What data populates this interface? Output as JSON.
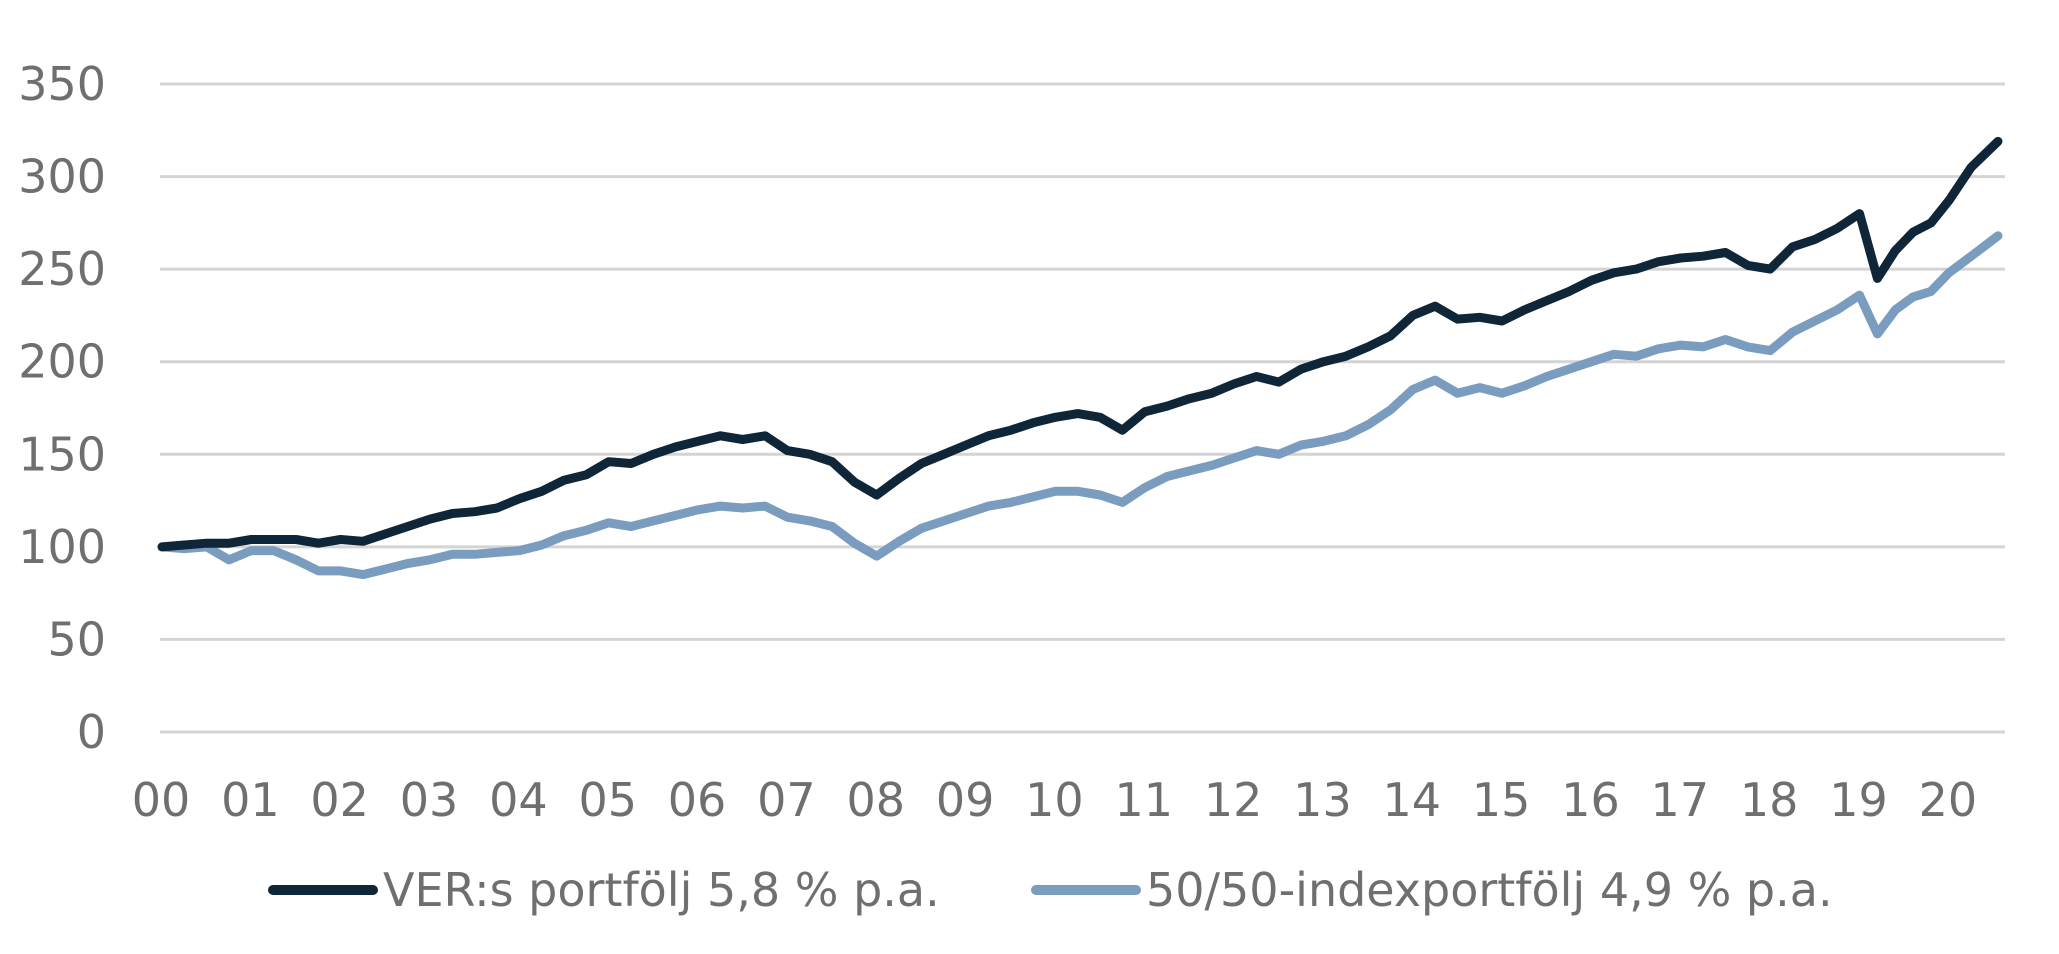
{
  "chart_data": {
    "type": "line",
    "title": "",
    "xlabel": "",
    "ylabel": "",
    "ylim": [
      0,
      350
    ],
    "y_ticks": [
      "0",
      "50",
      "100",
      "150",
      "200",
      "250",
      "300",
      "350"
    ],
    "x_ticks": [
      "00",
      "01",
      "02",
      "03",
      "04",
      "05",
      "06",
      "07",
      "08",
      "09",
      "10",
      "11",
      "12",
      "13",
      "14",
      "15",
      "16",
      "17",
      "18",
      "19",
      "20"
    ],
    "xlim": [
      0,
      20.55
    ],
    "grid": true,
    "legend_position": "bottom",
    "series": [
      {
        "name": "VER:s portfölj 5,8 % p.a.",
        "color": "#0f2538",
        "points": [
          [
            0.0,
            100
          ],
          [
            0.25,
            101
          ],
          [
            0.5,
            102
          ],
          [
            0.75,
            102
          ],
          [
            1.0,
            104
          ],
          [
            1.25,
            104
          ],
          [
            1.5,
            104
          ],
          [
            1.75,
            102
          ],
          [
            2.0,
            104
          ],
          [
            2.25,
            103
          ],
          [
            2.5,
            107
          ],
          [
            2.75,
            111
          ],
          [
            3.0,
            115
          ],
          [
            3.25,
            118
          ],
          [
            3.5,
            119
          ],
          [
            3.75,
            121
          ],
          [
            4.0,
            126
          ],
          [
            4.25,
            130
          ],
          [
            4.5,
            136
          ],
          [
            4.75,
            139
          ],
          [
            5.0,
            146
          ],
          [
            5.25,
            145
          ],
          [
            5.5,
            150
          ],
          [
            5.75,
            154
          ],
          [
            6.0,
            157
          ],
          [
            6.25,
            160
          ],
          [
            6.5,
            158
          ],
          [
            6.75,
            160
          ],
          [
            7.0,
            152
          ],
          [
            7.25,
            150
          ],
          [
            7.5,
            146
          ],
          [
            7.75,
            135
          ],
          [
            8.0,
            128
          ],
          [
            8.25,
            137
          ],
          [
            8.5,
            145
          ],
          [
            8.75,
            150
          ],
          [
            9.0,
            155
          ],
          [
            9.25,
            160
          ],
          [
            9.5,
            163
          ],
          [
            9.75,
            167
          ],
          [
            10.0,
            170
          ],
          [
            10.25,
            172
          ],
          [
            10.5,
            170
          ],
          [
            10.75,
            163
          ],
          [
            11.0,
            173
          ],
          [
            11.25,
            176
          ],
          [
            11.5,
            180
          ],
          [
            11.75,
            183
          ],
          [
            12.0,
            188
          ],
          [
            12.25,
            192
          ],
          [
            12.5,
            189
          ],
          [
            12.75,
            196
          ],
          [
            13.0,
            200
          ],
          [
            13.25,
            203
          ],
          [
            13.5,
            208
          ],
          [
            13.75,
            214
          ],
          [
            14.0,
            225
          ],
          [
            14.25,
            230
          ],
          [
            14.5,
            223
          ],
          [
            14.75,
            224
          ],
          [
            15.0,
            222
          ],
          [
            15.25,
            228
          ],
          [
            15.5,
            233
          ],
          [
            15.75,
            238
          ],
          [
            16.0,
            244
          ],
          [
            16.25,
            248
          ],
          [
            16.5,
            250
          ],
          [
            16.75,
            254
          ],
          [
            17.0,
            256
          ],
          [
            17.25,
            257
          ],
          [
            17.5,
            259
          ],
          [
            17.75,
            252
          ],
          [
            18.0,
            250
          ],
          [
            18.25,
            262
          ],
          [
            18.5,
            266
          ],
          [
            18.75,
            272
          ],
          [
            19.0,
            280
          ],
          [
            19.2,
            245
          ],
          [
            19.4,
            260
          ],
          [
            19.6,
            270
          ],
          [
            19.8,
            275
          ],
          [
            20.0,
            287
          ],
          [
            20.25,
            305
          ],
          [
            20.55,
            319
          ]
        ]
      },
      {
        "name": "50/50-indexportfölj 4,9 % p.a.",
        "color": "#7a9cbf",
        "points": [
          [
            0.0,
            100
          ],
          [
            0.25,
            99
          ],
          [
            0.5,
            100
          ],
          [
            0.75,
            93
          ],
          [
            1.0,
            98
          ],
          [
            1.25,
            98
          ],
          [
            1.5,
            93
          ],
          [
            1.75,
            87
          ],
          [
            2.0,
            87
          ],
          [
            2.25,
            85
          ],
          [
            2.5,
            88
          ],
          [
            2.75,
            91
          ],
          [
            3.0,
            93
          ],
          [
            3.25,
            96
          ],
          [
            3.5,
            96
          ],
          [
            3.75,
            97
          ],
          [
            4.0,
            98
          ],
          [
            4.25,
            101
          ],
          [
            4.5,
            106
          ],
          [
            4.75,
            109
          ],
          [
            5.0,
            113
          ],
          [
            5.25,
            111
          ],
          [
            5.5,
            114
          ],
          [
            5.75,
            117
          ],
          [
            6.0,
            120
          ],
          [
            6.25,
            122
          ],
          [
            6.5,
            121
          ],
          [
            6.75,
            122
          ],
          [
            7.0,
            116
          ],
          [
            7.25,
            114
          ],
          [
            7.5,
            111
          ],
          [
            7.75,
            102
          ],
          [
            8.0,
            95
          ],
          [
            8.25,
            103
          ],
          [
            8.5,
            110
          ],
          [
            8.75,
            114
          ],
          [
            9.0,
            118
          ],
          [
            9.25,
            122
          ],
          [
            9.5,
            124
          ],
          [
            9.75,
            127
          ],
          [
            10.0,
            130
          ],
          [
            10.25,
            130
          ],
          [
            10.5,
            128
          ],
          [
            10.75,
            124
          ],
          [
            11.0,
            132
          ],
          [
            11.25,
            138
          ],
          [
            11.5,
            141
          ],
          [
            11.75,
            144
          ],
          [
            12.0,
            148
          ],
          [
            12.25,
            152
          ],
          [
            12.5,
            150
          ],
          [
            12.75,
            155
          ],
          [
            13.0,
            157
          ],
          [
            13.25,
            160
          ],
          [
            13.5,
            166
          ],
          [
            13.75,
            174
          ],
          [
            14.0,
            185
          ],
          [
            14.25,
            190
          ],
          [
            14.5,
            183
          ],
          [
            14.75,
            186
          ],
          [
            15.0,
            183
          ],
          [
            15.25,
            187
          ],
          [
            15.5,
            192
          ],
          [
            15.75,
            196
          ],
          [
            16.0,
            200
          ],
          [
            16.25,
            204
          ],
          [
            16.5,
            203
          ],
          [
            16.75,
            207
          ],
          [
            17.0,
            209
          ],
          [
            17.25,
            208
          ],
          [
            17.5,
            212
          ],
          [
            17.75,
            208
          ],
          [
            18.0,
            206
          ],
          [
            18.25,
            216
          ],
          [
            18.5,
            222
          ],
          [
            18.75,
            228
          ],
          [
            19.0,
            236
          ],
          [
            19.2,
            215
          ],
          [
            19.4,
            228
          ],
          [
            19.6,
            235
          ],
          [
            19.8,
            238
          ],
          [
            20.0,
            248
          ],
          [
            20.25,
            257
          ],
          [
            20.55,
            268
          ]
        ]
      }
    ]
  }
}
